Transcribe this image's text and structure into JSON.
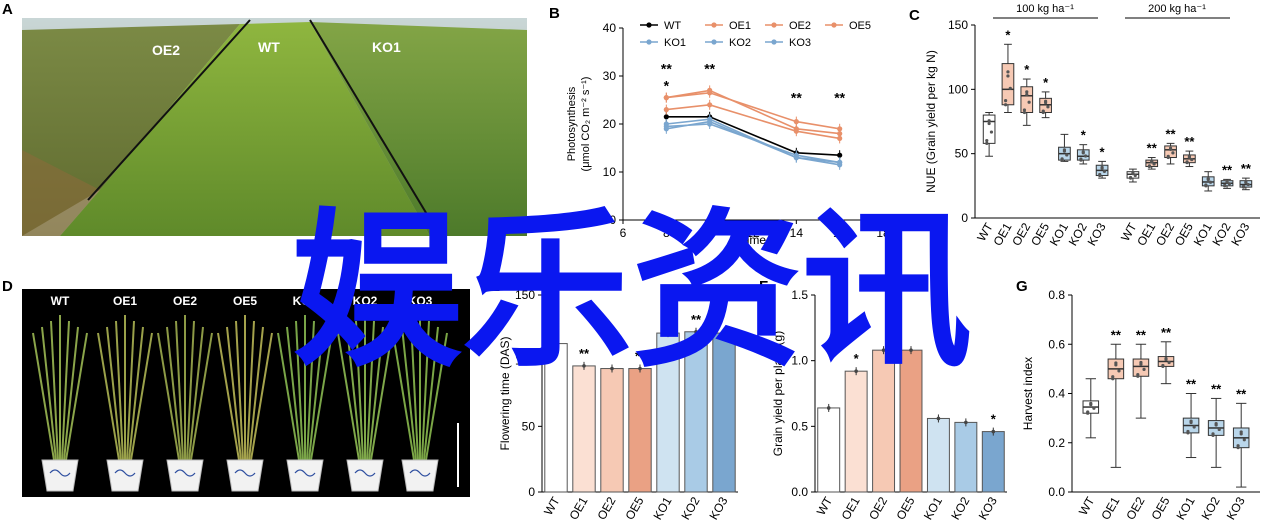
{
  "panel_labels": {
    "A": "A",
    "B": "B",
    "C": "C",
    "D": "D",
    "E": "E",
    "F": "F",
    "G": "G"
  },
  "photo_a": {
    "labels": [
      "OE2",
      "WT",
      "KO1"
    ]
  },
  "photo_d": {
    "labels": [
      "WT",
      "OE1",
      "OE2",
      "OE5",
      "KO1",
      "KO2",
      "KO3"
    ]
  },
  "watermark": "娱乐资讯",
  "colors": {
    "wt": "#000000",
    "oe": "#e8906a",
    "ko": "#7aa6cf",
    "oe_fill": "#f6c9b4",
    "ko_fill": "#b9d6ea"
  },
  "chart_data": [
    {
      "id": "B",
      "type": "line",
      "ylabel_lines": [
        "Photosynthesis",
        "(μmol CO₂ m⁻² s⁻¹)"
      ],
      "xlabel": "Time",
      "x": [
        8,
        10,
        14,
        16
      ],
      "xticks": [
        6,
        8,
        10,
        12,
        14,
        16,
        18
      ],
      "xlim": [
        6,
        18
      ],
      "ylim": [
        0,
        40
      ],
      "yticks": [
        0,
        10,
        20,
        30,
        40
      ],
      "series": [
        {
          "name": "WT",
          "group": "wt",
          "values": [
            21.5,
            21.5,
            14,
            13.5
          ]
        },
        {
          "name": "OE1",
          "group": "oe",
          "values": [
            25.5,
            26.5,
            20.5,
            19
          ]
        },
        {
          "name": "OE2",
          "group": "oe",
          "values": [
            25.5,
            27,
            19,
            18
          ]
        },
        {
          "name": "OE5",
          "group": "oe",
          "values": [
            23,
            24,
            18.5,
            17
          ]
        },
        {
          "name": "KO1",
          "group": "ko",
          "values": [
            20,
            21,
            13,
            12
          ]
        },
        {
          "name": "KO2",
          "group": "ko",
          "values": [
            19,
            20.5,
            13,
            11.5
          ]
        },
        {
          "name": "KO3",
          "group": "ko",
          "values": [
            19.5,
            20,
            13.5,
            12
          ]
        }
      ],
      "annotations": [
        {
          "x": 8,
          "text": "**"
        },
        {
          "x": 8,
          "text": "*"
        },
        {
          "x": 10,
          "text": "**"
        },
        {
          "x": 14,
          "text": "**"
        },
        {
          "x": 16,
          "text": "**"
        }
      ]
    },
    {
      "id": "C",
      "type": "box",
      "ylabel": "NUE (Grain yield per kg N)",
      "ylim": [
        0,
        150
      ],
      "yticks": [
        0,
        50,
        100,
        150
      ],
      "group_titles": [
        "100 kg ha⁻¹",
        "200 kg ha⁻¹"
      ],
      "categories": [
        "WT",
        "OE1",
        "OE2",
        "OE5",
        "KO1",
        "KO2",
        "KO3",
        "WT",
        "OE1",
        "OE2",
        "OE5",
        "KO1",
        "KO2",
        "KO3"
      ],
      "boxes": [
        {
          "q1": 58,
          "med": 75,
          "q3": 80,
          "min": 48,
          "max": 82,
          "sig": ""
        },
        {
          "q1": 88,
          "med": 100,
          "q3": 120,
          "min": 82,
          "max": 135,
          "sig": "*"
        },
        {
          "q1": 82,
          "med": 95,
          "q3": 102,
          "min": 72,
          "max": 108,
          "sig": "*"
        },
        {
          "q1": 82,
          "med": 88,
          "q3": 93,
          "min": 78,
          "max": 98,
          "sig": "*"
        },
        {
          "q1": 45,
          "med": 50,
          "q3": 55,
          "min": 44,
          "max": 65,
          "sig": ""
        },
        {
          "q1": 45,
          "med": 48,
          "q3": 53,
          "min": 42,
          "max": 57,
          "sig": "*"
        },
        {
          "q1": 33,
          "med": 37,
          "q3": 41,
          "min": 31,
          "max": 44,
          "sig": "*"
        },
        {
          "q1": 31,
          "med": 34,
          "q3": 36,
          "min": 28,
          "max": 38,
          "sig": ""
        },
        {
          "q1": 40,
          "med": 43,
          "q3": 45,
          "min": 38,
          "max": 47,
          "sig": "**"
        },
        {
          "q1": 47,
          "med": 53,
          "q3": 56,
          "min": 42,
          "max": 58,
          "sig": "**"
        },
        {
          "q1": 43,
          "med": 46,
          "q3": 49,
          "min": 40,
          "max": 52,
          "sig": "**"
        },
        {
          "q1": 25,
          "med": 28,
          "q3": 32,
          "min": 21,
          "max": 36,
          "sig": ""
        },
        {
          "q1": 25,
          "med": 27,
          "q3": 29,
          "min": 23,
          "max": 30,
          "sig": "**"
        },
        {
          "q1": 24,
          "med": 26,
          "q3": 29,
          "min": 22,
          "max": 31,
          "sig": "**"
        }
      ]
    },
    {
      "id": "E",
      "type": "bar",
      "ylabel": "Flowering time (DAS)",
      "ylim": [
        0,
        150
      ],
      "yticks": [
        0,
        50,
        100,
        150
      ],
      "categories": [
        "WT",
        "OE1",
        "OE2",
        "OE5",
        "KO1",
        "KO2",
        "KO3"
      ],
      "values": [
        113,
        96,
        94,
        94,
        121,
        122,
        121
      ],
      "sig": [
        "",
        "**",
        "",
        "**",
        "",
        "**",
        ""
      ]
    },
    {
      "id": "F",
      "type": "bar",
      "ylabel": "Grain yield per plant (g)",
      "ylim": [
        0,
        1.5
      ],
      "yticks": [
        "0.0",
        "0.5",
        "1.0",
        "1.5"
      ],
      "categories": [
        "WT",
        "OE1",
        "OE2",
        "OE5",
        "KO1",
        "KO2",
        "KO3"
      ],
      "values": [
        0.64,
        0.92,
        1.08,
        1.08,
        0.56,
        0.53,
        0.46
      ],
      "sig": [
        "",
        "*",
        "",
        "",
        "",
        "",
        "*"
      ]
    },
    {
      "id": "G",
      "type": "box",
      "ylabel": "Harvest index",
      "ylim": [
        0,
        0.8
      ],
      "yticks": [
        "0.0",
        "0.2",
        "0.4",
        "0.6",
        "0.8"
      ],
      "categories": [
        "WT",
        "OE1",
        "OE2",
        "OE5",
        "KO1",
        "KO2",
        "KO3"
      ],
      "boxes": [
        {
          "q1": 0.32,
          "med": 0.345,
          "q3": 0.37,
          "min": 0.22,
          "max": 0.46,
          "sig": ""
        },
        {
          "q1": 0.46,
          "med": 0.5,
          "q3": 0.54,
          "min": 0.1,
          "max": 0.6,
          "sig": "**"
        },
        {
          "q1": 0.47,
          "med": 0.51,
          "q3": 0.54,
          "min": 0.3,
          "max": 0.6,
          "sig": "**"
        },
        {
          "q1": 0.51,
          "med": 0.53,
          "q3": 0.55,
          "min": 0.44,
          "max": 0.61,
          "sig": "**"
        },
        {
          "q1": 0.24,
          "med": 0.27,
          "q3": 0.3,
          "min": 0.14,
          "max": 0.4,
          "sig": "**"
        },
        {
          "q1": 0.23,
          "med": 0.26,
          "q3": 0.29,
          "min": 0.1,
          "max": 0.38,
          "sig": "**"
        },
        {
          "q1": 0.18,
          "med": 0.22,
          "q3": 0.26,
          "min": 0.02,
          "max": 0.36,
          "sig": "**"
        }
      ]
    }
  ]
}
